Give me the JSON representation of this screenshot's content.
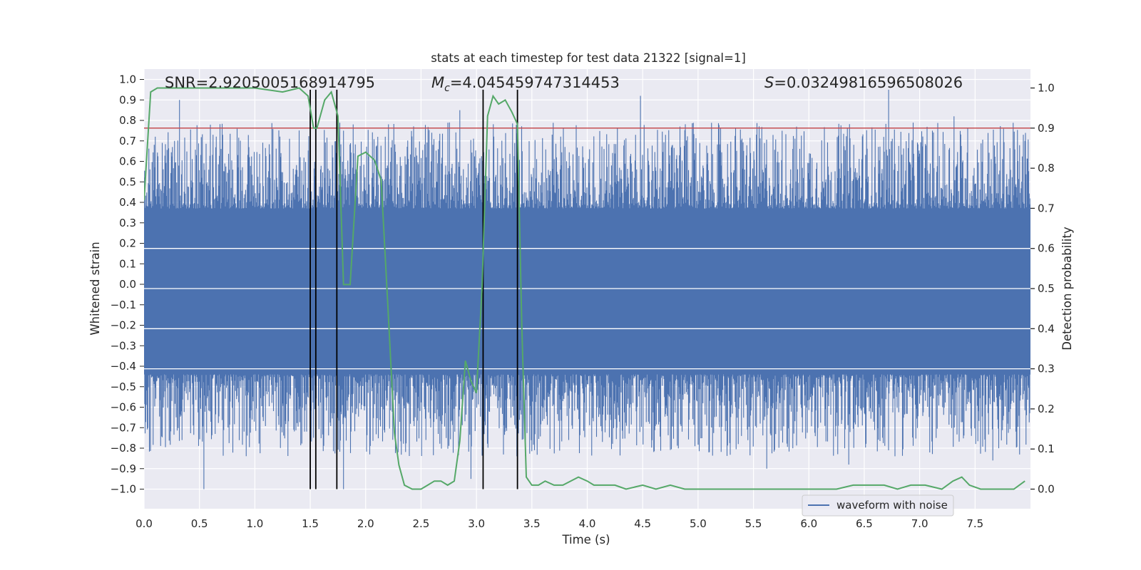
{
  "chart_data": {
    "type": "line",
    "title": "stats at each timestep for test data 21322 [signal=1]",
    "xlabel": "Time (s)",
    "ylabel": "Whitened strain",
    "y2label": "Detection probability",
    "xlim": [
      0.0,
      8.0
    ],
    "ylim": [
      -1.1,
      1.05
    ],
    "y2lim": [
      -0.05,
      1.03
    ],
    "xticks": [
      "0.0",
      "0.5",
      "1.0",
      "1.5",
      "2.0",
      "2.5",
      "3.0",
      "3.5",
      "4.0",
      "4.5",
      "5.0",
      "5.5",
      "6.0",
      "6.5",
      "7.0",
      "7.5"
    ],
    "yticks": [
      "1.0",
      "0.9",
      "0.8",
      "0.7",
      "0.6",
      "0.5",
      "0.4",
      "0.3",
      "0.2",
      "0.1",
      "0.0",
      "−0.1",
      "−0.2",
      "−0.3",
      "−0.4",
      "−0.5",
      "−0.6",
      "−0.7",
      "−0.8",
      "−0.9",
      "−1.0"
    ],
    "y2ticks": [
      "1.0",
      "0.9",
      "0.8",
      "0.7",
      "0.6",
      "0.5",
      "0.4",
      "0.3",
      "0.2",
      "0.1",
      "0.0"
    ],
    "annotations": {
      "snr": "SNR=2.9205005168914795",
      "mc_symbol": "M",
      "mc_subscript": "c",
      "mc_value": "=4.045459747314453",
      "s_symbol": "S",
      "s_value": "=0.03249816596508026"
    },
    "legend": {
      "label": "waveform with noise",
      "location": "lower-right"
    },
    "threshold": {
      "value": 0.9,
      "axis": "y2",
      "color": "#c44e52"
    },
    "vertical_lines_x": [
      1.5,
      1.55,
      1.74,
      3.06,
      3.37
    ],
    "waveform": {
      "name": "waveform with noise",
      "color": "#4c72b0",
      "duration_s": 8.0,
      "band_upper": 0.35,
      "band_lower": -0.42,
      "envelope_seed": 21322,
      "peak_spikes": [
        [
          0.32,
          0.9
        ],
        [
          1.8,
          0.75
        ],
        [
          2.85,
          0.85
        ],
        [
          3.37,
          0.93
        ],
        [
          4.48,
          0.92
        ],
        [
          6.72,
          0.95
        ],
        [
          7.31,
          0.82
        ],
        [
          7.95,
          0.7
        ]
      ],
      "trough_spikes": [
        [
          0.54,
          -1.0
        ],
        [
          1.8,
          -1.0
        ],
        [
          2.95,
          -0.95
        ],
        [
          5.62,
          -0.9
        ],
        [
          6.36,
          -0.88
        ],
        [
          7.66,
          -0.86
        ]
      ]
    },
    "series": [
      {
        "name": "Detection probability",
        "axis": "y2",
        "color": "#55a868",
        "x": [
          0.0,
          0.06,
          0.12,
          0.18,
          0.25,
          0.5,
          0.75,
          1.0,
          1.25,
          1.4,
          1.48,
          1.53,
          1.56,
          1.63,
          1.69,
          1.75,
          1.8,
          1.86,
          1.93,
          2.0,
          2.08,
          2.14,
          2.2,
          2.26,
          2.3,
          2.35,
          2.42,
          2.5,
          2.56,
          2.62,
          2.68,
          2.74,
          2.8,
          2.85,
          2.9,
          2.95,
          3.0,
          3.05,
          3.1,
          3.15,
          3.2,
          3.26,
          3.32,
          3.37,
          3.41,
          3.45,
          3.5,
          3.56,
          3.62,
          3.7,
          3.78,
          3.85,
          3.92,
          4.0,
          4.06,
          4.15,
          4.25,
          4.35,
          4.5,
          4.62,
          4.75,
          4.88,
          5.0,
          5.12,
          5.25,
          5.5,
          5.75,
          6.0,
          6.25,
          6.4,
          6.55,
          6.68,
          6.8,
          6.92,
          7.05,
          7.2,
          7.3,
          7.38,
          7.45,
          7.55,
          7.7,
          7.85,
          7.95
        ],
        "values": [
          0.72,
          0.99,
          1.0,
          1.0,
          1.0,
          1.0,
          1.0,
          1.0,
          0.99,
          1.0,
          0.98,
          0.9,
          0.9,
          0.97,
          0.99,
          0.93,
          0.51,
          0.51,
          0.83,
          0.84,
          0.82,
          0.77,
          0.46,
          0.14,
          0.06,
          0.01,
          0.0,
          0.0,
          0.01,
          0.02,
          0.02,
          0.01,
          0.02,
          0.12,
          0.32,
          0.27,
          0.24,
          0.5,
          0.93,
          0.98,
          0.96,
          0.97,
          0.94,
          0.91,
          0.4,
          0.03,
          0.01,
          0.01,
          0.02,
          0.01,
          0.01,
          0.02,
          0.03,
          0.02,
          0.01,
          0.01,
          0.01,
          0.0,
          0.01,
          0.0,
          0.01,
          0.0,
          0.0,
          0.0,
          0.0,
          0.0,
          0.0,
          0.0,
          0.0,
          0.01,
          0.01,
          0.01,
          0.0,
          0.01,
          0.01,
          0.0,
          0.02,
          0.03,
          0.01,
          0.0,
          0.0,
          0.0,
          0.02
        ]
      }
    ]
  }
}
